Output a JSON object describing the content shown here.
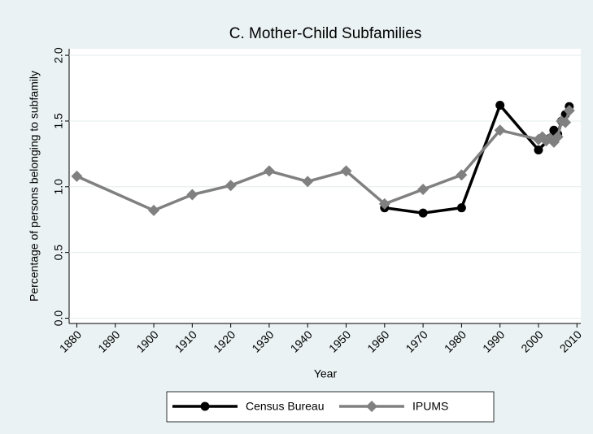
{
  "chart_data": {
    "type": "line",
    "title": "C. Mother-Child Subfamilies",
    "x_label": "Year",
    "y_label": "Percentage of persons belonging to subfamily",
    "xlim": [
      1878,
      2011
    ],
    "ylim": [
      -0.04,
      2.05
    ],
    "xticks": [
      1880,
      1890,
      1900,
      1910,
      1920,
      1930,
      1940,
      1950,
      1960,
      1970,
      1980,
      1990,
      2000,
      2010
    ],
    "yticks": [
      {
        "value": 0,
        "label": "0.0"
      },
      0.5,
      {
        "value": 1,
        "label": "1.0"
      },
      1.5,
      {
        "value": 2,
        "label": "2.0"
      }
    ],
    "grid": true,
    "legend": "bottom",
    "series": [
      {
        "name": "Census Bureau",
        "color": "#000000",
        "marker": "circle",
        "x": [
          1960,
          1970,
          1980,
          1990,
          2000,
          2003,
          2004,
          2005,
          2006,
          2007,
          2008
        ],
        "values": [
          0.84,
          0.8,
          0.84,
          1.62,
          1.28,
          1.37,
          1.43,
          1.4,
          1.5,
          1.55,
          1.61
        ]
      },
      {
        "name": "IPUMS",
        "color": "#808080",
        "marker": "diamond",
        "x": [
          1880,
          1900,
          1910,
          1920,
          1930,
          1940,
          1950,
          1960,
          1970,
          1980,
          1990,
          2000,
          2001,
          2002,
          2003,
          2004,
          2005,
          2006,
          2007,
          2008
        ],
        "values": [
          1.08,
          0.82,
          0.94,
          1.01,
          1.12,
          1.04,
          1.12,
          0.87,
          0.98,
          1.09,
          1.43,
          1.36,
          1.38,
          1.35,
          1.37,
          1.34,
          1.38,
          1.5,
          1.49,
          1.58
        ]
      }
    ]
  }
}
